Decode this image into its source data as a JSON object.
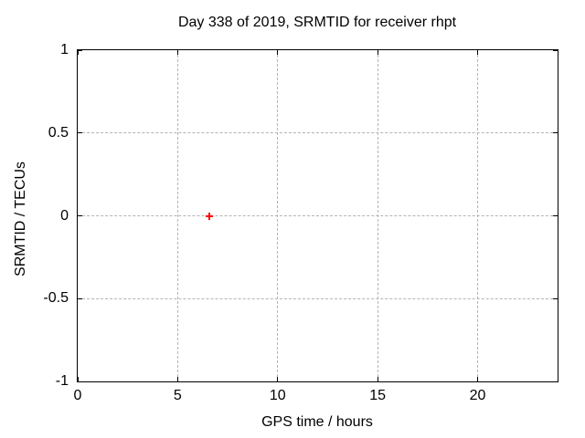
{
  "chart_data": {
    "type": "scatter",
    "title": "Day 338 of 2019, SRMTID for receiver rhpt",
    "xlabel": "GPS time / hours",
    "ylabel": "SRMTID / TECUs",
    "xlim": [
      0,
      24
    ],
    "ylim": [
      -1,
      1
    ],
    "xticks": [
      0,
      5,
      10,
      15,
      20
    ],
    "xtick_labels": [
      "0",
      "5",
      "10",
      "15",
      "20"
    ],
    "yticks": [
      1,
      0.5,
      0,
      -0.5,
      -1
    ],
    "ytick_labels": [
      "1",
      "0.5",
      "0",
      "-0.5",
      "-1"
    ],
    "grid": true,
    "legend_position": "none",
    "series": [
      {
        "name": "SRMTID",
        "marker": "plus",
        "color": "#ff0000",
        "points": [
          {
            "x": 6.6,
            "y": 0.0
          }
        ]
      }
    ]
  },
  "colors": {
    "background": "#ffffff",
    "frame": "#000000",
    "text": "#000000",
    "grid": "#b4b4b4",
    "marker": "#ff0000"
  }
}
